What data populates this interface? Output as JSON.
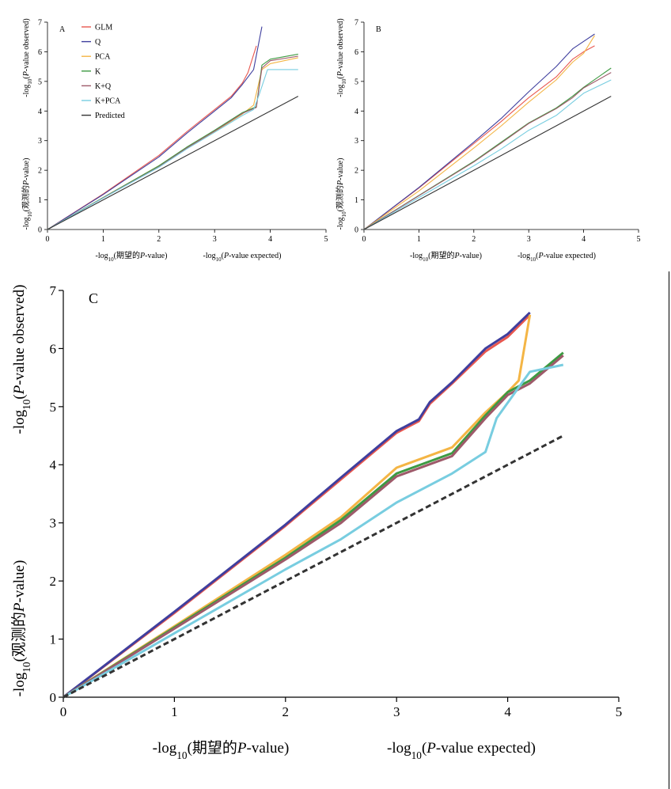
{
  "colors": {
    "GLM": "#e8574f",
    "Q": "#3f3f9e",
    "PCA": "#f4b545",
    "K": "#3d9a42",
    "K+Q": "#9e5a6a",
    "K+PCA": "#78cde0",
    "Predicted": "#333333"
  },
  "chart_data": [
    {
      "type": "line",
      "panel_label": "A",
      "xlabel_cn": "-log10(期望的P-value)",
      "xlabel_en": "-log10(P-value expected)",
      "ylabel_cn": "-log10(观测的P-value)",
      "ylabel_en": "-log10(P-value observed)",
      "xlim": [
        0,
        5
      ],
      "ylim": [
        0,
        7
      ],
      "xticks": [
        "0",
        "1",
        "2",
        "3",
        "4",
        "5"
      ],
      "yticks": [
        "0",
        "1",
        "2",
        "3",
        "4",
        "5",
        "6",
        "7"
      ],
      "legend": [
        "GLM",
        "Q",
        "PCA",
        "K",
        "K+Q",
        "K+PCA",
        "Predicted"
      ],
      "legend_position": "top-left",
      "series": [
        {
          "name": "GLM",
          "x": [
            0,
            1,
            2,
            2.5,
            3,
            3.3,
            3.5,
            3.6,
            3.75
          ],
          "y": [
            0,
            1.2,
            2.5,
            3.3,
            4.05,
            4.5,
            4.95,
            5.3,
            6.2
          ]
        },
        {
          "name": "Q",
          "x": [
            0,
            1,
            2,
            2.5,
            3,
            3.3,
            3.5,
            3.7,
            3.85
          ],
          "y": [
            0,
            1.18,
            2.45,
            3.25,
            4.0,
            4.45,
            4.9,
            5.4,
            6.85
          ]
        },
        {
          "name": "PCA",
          "x": [
            0,
            1,
            2,
            2.5,
            3,
            3.5,
            3.7,
            3.85,
            4.0,
            4.5
          ],
          "y": [
            0,
            1.08,
            2.15,
            2.75,
            3.3,
            3.9,
            4.2,
            5.4,
            5.6,
            5.8
          ]
        },
        {
          "name": "K",
          "x": [
            0,
            1,
            2,
            2.5,
            3,
            3.5,
            3.75,
            3.85,
            4.0,
            4.5
          ],
          "y": [
            0,
            1.08,
            2.15,
            2.78,
            3.35,
            3.95,
            4.15,
            5.55,
            5.75,
            5.92
          ]
        },
        {
          "name": "K+Q",
          "x": [
            0,
            1,
            2,
            2.5,
            3,
            3.5,
            3.75,
            3.85,
            4.0,
            4.5
          ],
          "y": [
            0,
            1.07,
            2.12,
            2.75,
            3.32,
            3.92,
            4.12,
            5.45,
            5.7,
            5.85
          ]
        },
        {
          "name": "K+PCA",
          "x": [
            0,
            1,
            2,
            2.5,
            3,
            3.5,
            3.7,
            3.8,
            3.95,
            4.5
          ],
          "y": [
            0,
            1.06,
            2.1,
            2.72,
            3.28,
            3.85,
            4.05,
            4.55,
            5.4,
            5.4
          ]
        },
        {
          "name": "Predicted",
          "x": [
            0,
            4.5
          ],
          "y": [
            0,
            4.5
          ]
        }
      ]
    },
    {
      "type": "line",
      "panel_label": "B",
      "xlabel_cn": "-log10(期望的P-value)",
      "xlabel_en": "-log10(P-value expected)",
      "ylabel_cn": "-log10(观测的P-value)",
      "ylabel_en": "-log10(P-value observed)",
      "xlim": [
        0,
        5
      ],
      "ylim": [
        0,
        7
      ],
      "xticks": [
        "0",
        "1",
        "2",
        "3",
        "4",
        "5"
      ],
      "yticks": [
        "0",
        "1",
        "2",
        "3",
        "4",
        "5",
        "6",
        "7"
      ],
      "series": [
        {
          "name": "GLM",
          "x": [
            0,
            1,
            2,
            2.5,
            3,
            3.5,
            3.8,
            4.0,
            4.2
          ],
          "y": [
            0,
            1.4,
            2.9,
            3.65,
            4.45,
            5.15,
            5.75,
            6.0,
            6.2
          ]
        },
        {
          "name": "Q",
          "x": [
            0,
            1,
            2,
            2.5,
            3,
            3.5,
            3.8,
            4.0,
            4.2
          ],
          "y": [
            0,
            1.42,
            2.95,
            3.75,
            4.65,
            5.5,
            6.1,
            6.35,
            6.6
          ]
        },
        {
          "name": "PCA",
          "x": [
            0,
            1,
            2,
            2.5,
            3,
            3.5,
            3.8,
            4.0,
            4.2
          ],
          "y": [
            0,
            1.3,
            2.75,
            3.5,
            4.3,
            5.05,
            5.65,
            5.95,
            6.55
          ]
        },
        {
          "name": "K",
          "x": [
            0,
            1,
            2,
            2.5,
            3,
            3.5,
            3.8,
            4.0,
            4.5
          ],
          "y": [
            0,
            1.15,
            2.3,
            2.95,
            3.6,
            4.1,
            4.5,
            4.8,
            5.45
          ]
        },
        {
          "name": "K+Q",
          "x": [
            0,
            1,
            2,
            2.5,
            3,
            3.5,
            3.8,
            4.0,
            4.5
          ],
          "y": [
            0,
            1.14,
            2.28,
            2.92,
            3.58,
            4.08,
            4.45,
            4.78,
            5.3
          ]
        },
        {
          "name": "K+PCA",
          "x": [
            0,
            1,
            2,
            2.5,
            3,
            3.5,
            3.8,
            4.0,
            4.5
          ],
          "y": [
            0,
            1.08,
            2.15,
            2.72,
            3.35,
            3.85,
            4.3,
            4.6,
            5.05
          ]
        },
        {
          "name": "Predicted",
          "x": [
            0,
            4.5
          ],
          "y": [
            0,
            4.5
          ]
        }
      ]
    },
    {
      "type": "line",
      "panel_label": "C",
      "xlabel_cn": "-log10(期望的P-value)",
      "xlabel_en": "-log10(P-value expected)",
      "ylabel_cn": "-log10(观测的P-value)",
      "ylabel_en": "-log10(P-value observed)",
      "xlim": [
        0,
        5
      ],
      "ylim": [
        0,
        7
      ],
      "xticks": [
        "0",
        "1",
        "2",
        "3",
        "4",
        "5"
      ],
      "yticks": [
        "0",
        "1",
        "2",
        "3",
        "4",
        "5",
        "6",
        "7"
      ],
      "series": [
        {
          "name": "GLM",
          "x": [
            0,
            1,
            2,
            2.5,
            3,
            3.2,
            3.3,
            3.5,
            3.8,
            4.0,
            4.2
          ],
          "y": [
            0,
            1.45,
            2.95,
            3.75,
            4.55,
            4.75,
            5.05,
            5.4,
            5.95,
            6.2,
            6.58
          ]
        },
        {
          "name": "Q",
          "x": [
            0,
            1,
            2,
            2.5,
            3,
            3.2,
            3.3,
            3.5,
            3.8,
            4.0,
            4.2
          ],
          "y": [
            0,
            1.47,
            2.97,
            3.78,
            4.58,
            4.78,
            5.08,
            5.42,
            6.0,
            6.25,
            6.62
          ]
        },
        {
          "name": "PCA",
          "x": [
            0,
            1,
            2,
            2.5,
            3,
            3.5,
            3.8,
            4.0,
            4.1,
            4.2
          ],
          "y": [
            0,
            1.22,
            2.45,
            3.1,
            3.95,
            4.3,
            4.9,
            5.25,
            5.45,
            6.58
          ]
        },
        {
          "name": "K",
          "x": [
            0,
            1,
            2,
            2.5,
            3,
            3.5,
            3.8,
            4.0,
            4.2,
            4.5
          ],
          "y": [
            0,
            1.2,
            2.4,
            3.05,
            3.85,
            4.2,
            4.85,
            5.25,
            5.45,
            5.93
          ]
        },
        {
          "name": "K+Q",
          "x": [
            0,
            1,
            2,
            2.5,
            3,
            3.5,
            3.8,
            4.0,
            4.2,
            4.5
          ],
          "y": [
            0,
            1.18,
            2.37,
            3.0,
            3.8,
            4.15,
            4.8,
            5.2,
            5.4,
            5.88
          ]
        },
        {
          "name": "K+PCA",
          "x": [
            0,
            1,
            2,
            2.5,
            3,
            3.5,
            3.8,
            3.9,
            4.2,
            4.5
          ],
          "y": [
            0,
            1.1,
            2.2,
            2.72,
            3.35,
            3.85,
            4.22,
            4.8,
            5.6,
            5.72
          ]
        },
        {
          "name": "Predicted",
          "x": [
            0,
            4.5
          ],
          "y": [
            0,
            4.5
          ]
        }
      ]
    }
  ]
}
